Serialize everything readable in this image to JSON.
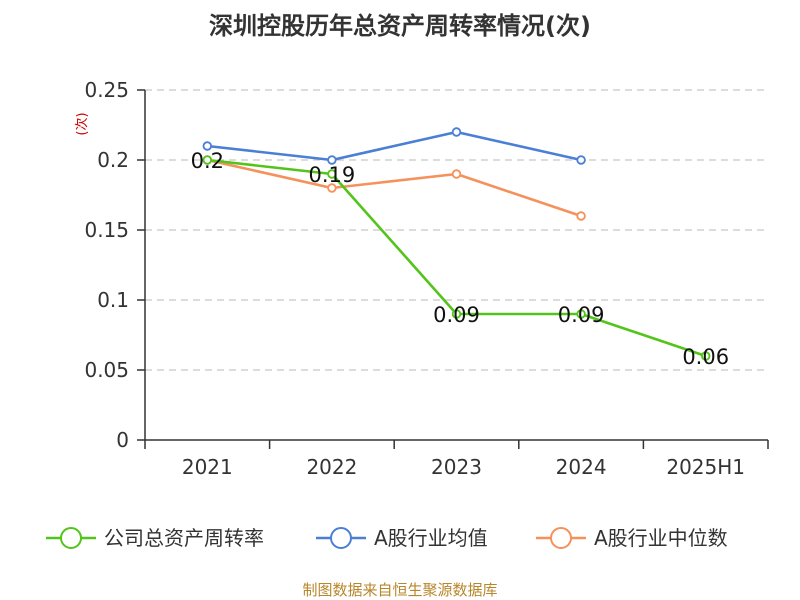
{
  "chart_data": {
    "type": "line",
    "title": "深圳控股历年总资产周转率情况(次)",
    "ylabel": "(次)",
    "xlabel": "",
    "categories": [
      "2021",
      "2022",
      "2023",
      "2024",
      "2025H1"
    ],
    "ylim": [
      0,
      0.25
    ],
    "yticks": [
      0,
      0.05,
      0.1,
      0.15,
      0.2,
      0.25
    ],
    "ytick_labels": [
      "0",
      "0.05",
      "0.1",
      "0.15",
      "0.2",
      "0.25"
    ],
    "grid": true,
    "legend_position": "bottom",
    "series": [
      {
        "name": "公司总资产周转率",
        "color": "#52c41a",
        "values": [
          0.2,
          0.19,
          0.09,
          0.09,
          0.06
        ],
        "labels": [
          "0.2",
          "0.19",
          "0.09",
          "0.09",
          "0.06"
        ]
      },
      {
        "name": "A股行业均值",
        "color": "#4a7fd6",
        "values": [
          0.21,
          0.2,
          0.22,
          0.2,
          null
        ]
      },
      {
        "name": "A股行业中位数",
        "color": "#f5915a",
        "values": [
          0.2,
          0.18,
          0.19,
          0.16,
          null
        ]
      }
    ],
    "source": "制图数据来自恒生聚源数据库"
  }
}
